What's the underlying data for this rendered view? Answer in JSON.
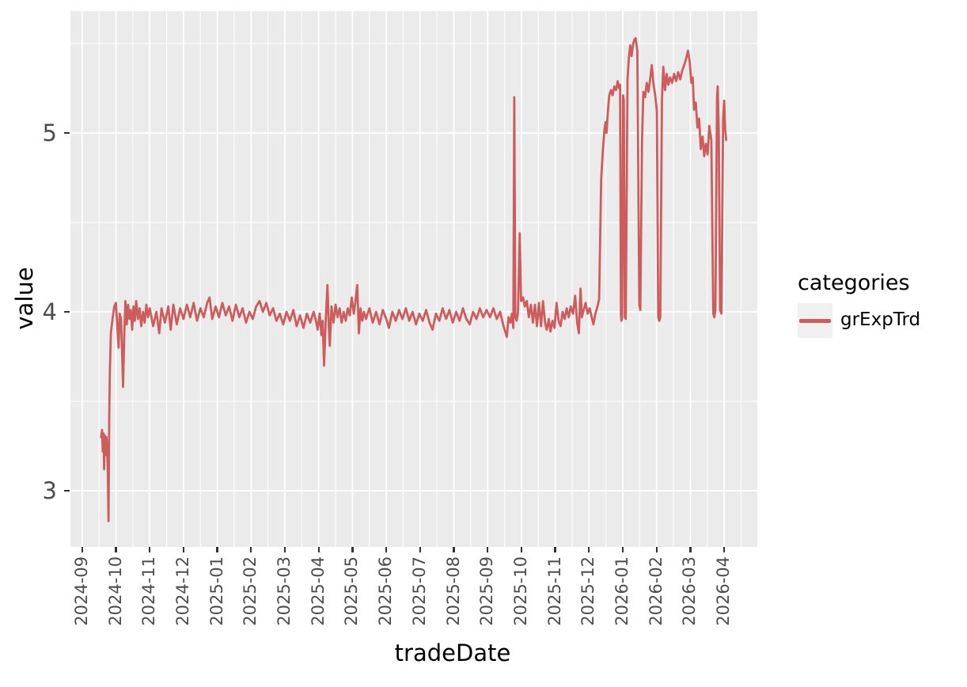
{
  "colors": {
    "figure_background": "#FFFFFF",
    "panel_background": "#EBEBEB",
    "grid": "#FFFFFF",
    "tick_label": "#4D4D4D",
    "tick_mark": "#333333",
    "axis_title": "#000000",
    "series_line": "#CD5C5C",
    "legend_key_background": "#F0F0F0"
  },
  "legend": {
    "title": "categories",
    "position": "right",
    "entries": [
      {
        "label": "grExpTrd",
        "color": "#CD5C5C"
      }
    ]
  },
  "chart_data": {
    "type": "line",
    "title": "",
    "xlabel": "tradeDate",
    "ylabel": "value",
    "x_unit": "months since 2024-09 (fractional month index)",
    "x_tick_labels": [
      "2024-09",
      "2024-10",
      "2024-11",
      "2024-12",
      "2025-01",
      "2025-02",
      "2025-03",
      "2025-04",
      "2025-05",
      "2025-06",
      "2025-07",
      "2025-08",
      "2025-09",
      "2025-10",
      "2025-11",
      "2025-12",
      "2026-01",
      "2026-02",
      "2026-03",
      "2026-04"
    ],
    "y_tick_values": [
      5,
      4,
      3
    ],
    "y_minor_values": [
      5.5,
      4.5,
      3.5
    ],
    "x_minor_offset": 0.5,
    "ylim_shown": [
      2.65,
      5.68
    ],
    "xlim_shown": [
      -0.35,
      19.98
    ],
    "grid": "white major and minor gridlines on gray panel",
    "legend_position": "right",
    "series": [
      {
        "name": "grExpTrd",
        "color": "#CD5C5C",
        "points": [
          [
            0.56,
            3.3
          ],
          [
            0.59,
            3.34
          ],
          [
            0.61,
            3.22
          ],
          [
            0.63,
            3.32
          ],
          [
            0.65,
            3.12
          ],
          [
            0.67,
            3.31
          ],
          [
            0.7,
            3.2
          ],
          [
            0.72,
            3.3
          ],
          [
            0.74,
            3.24
          ],
          [
            0.76,
            3.1
          ],
          [
            0.78,
            2.83
          ],
          [
            0.8,
            3.4
          ],
          [
            0.82,
            3.66
          ],
          [
            0.85,
            3.88
          ],
          [
            0.9,
            3.96
          ],
          [
            0.95,
            4.03
          ],
          [
            1.0,
            4.05
          ],
          [
            1.04,
            3.92
          ],
          [
            1.08,
            3.8
          ],
          [
            1.11,
            3.99
          ],
          [
            1.15,
            3.96
          ],
          [
            1.18,
            3.79
          ],
          [
            1.21,
            3.58
          ],
          [
            1.25,
            3.9
          ],
          [
            1.28,
            4.06
          ],
          [
            1.32,
            3.93
          ],
          [
            1.36,
            4.04
          ],
          [
            1.4,
            3.96
          ],
          [
            1.44,
            4.01
          ],
          [
            1.48,
            3.9
          ],
          [
            1.52,
            4.03
          ],
          [
            1.56,
            3.95
          ],
          [
            1.6,
            4.06
          ],
          [
            1.65,
            3.96
          ],
          [
            1.7,
            4.02
          ],
          [
            1.75,
            3.92
          ],
          [
            1.8,
            4.0
          ],
          [
            1.85,
            3.94
          ],
          [
            1.9,
            4.04
          ],
          [
            1.95,
            3.97
          ],
          [
            2.0,
            4.02
          ],
          [
            2.1,
            3.92
          ],
          [
            2.2,
            4.0
          ],
          [
            2.28,
            3.88
          ],
          [
            2.35,
            4.02
          ],
          [
            2.45,
            3.94
          ],
          [
            2.55,
            4.03
          ],
          [
            2.62,
            3.9
          ],
          [
            2.7,
            4.04
          ],
          [
            2.8,
            3.93
          ],
          [
            2.9,
            4.02
          ],
          [
            3.0,
            3.96
          ],
          [
            3.1,
            4.04
          ],
          [
            3.2,
            3.97
          ],
          [
            3.3,
            4.05
          ],
          [
            3.4,
            3.95
          ],
          [
            3.5,
            4.02
          ],
          [
            3.6,
            3.97
          ],
          [
            3.7,
            4.05
          ],
          [
            3.77,
            4.08
          ],
          [
            3.85,
            3.96
          ],
          [
            3.95,
            4.03
          ],
          [
            4.05,
            3.97
          ],
          [
            4.15,
            4.05
          ],
          [
            4.25,
            3.98
          ],
          [
            4.35,
            4.03
          ],
          [
            4.45,
            3.95
          ],
          [
            4.55,
            4.04
          ],
          [
            4.65,
            3.97
          ],
          [
            4.75,
            4.02
          ],
          [
            4.85,
            3.94
          ],
          [
            4.95,
            4.0
          ],
          [
            5.05,
            3.96
          ],
          [
            5.15,
            4.03
          ],
          [
            5.25,
            4.06
          ],
          [
            5.35,
            4.0
          ],
          [
            5.45,
            4.05
          ],
          [
            5.55,
            3.98
          ],
          [
            5.65,
            4.02
          ],
          [
            5.75,
            3.95
          ],
          [
            5.85,
            3.99
          ],
          [
            5.95,
            3.93
          ],
          [
            6.05,
            4.0
          ],
          [
            6.15,
            3.95
          ],
          [
            6.25,
            4.01
          ],
          [
            6.35,
            3.92
          ],
          [
            6.45,
            3.98
          ],
          [
            6.55,
            3.91
          ],
          [
            6.65,
            3.99
          ],
          [
            6.75,
            3.94
          ],
          [
            6.85,
            4.0
          ],
          [
            6.92,
            3.95
          ],
          [
            6.97,
            3.9
          ],
          [
            7.03,
            3.99
          ],
          [
            7.08,
            3.87
          ],
          [
            7.12,
            3.95
          ],
          [
            7.16,
            3.7
          ],
          [
            7.21,
            3.96
          ],
          [
            7.26,
            4.15
          ],
          [
            7.3,
            3.92
          ],
          [
            7.33,
            3.81
          ],
          [
            7.38,
            4.03
          ],
          [
            7.44,
            3.94
          ],
          [
            7.5,
            4.04
          ],
          [
            7.56,
            3.97
          ],
          [
            7.62,
            4.02
          ],
          [
            7.68,
            3.94
          ],
          [
            7.74,
            4.0
          ],
          [
            7.8,
            3.95
          ],
          [
            7.86,
            4.02
          ],
          [
            7.92,
            3.98
          ],
          [
            7.98,
            4.08
          ],
          [
            8.04,
            3.99
          ],
          [
            8.09,
            4.06
          ],
          [
            8.14,
            4.15
          ],
          [
            8.19,
            3.88
          ],
          [
            8.24,
            4.02
          ],
          [
            8.29,
            3.95
          ],
          [
            8.34,
            4.0
          ],
          [
            8.4,
            3.96
          ],
          [
            8.5,
            4.02
          ],
          [
            8.6,
            3.94
          ],
          [
            8.7,
            4.0
          ],
          [
            8.8,
            3.93
          ],
          [
            8.9,
            4.01
          ],
          [
            9.0,
            3.96
          ],
          [
            9.08,
            3.91
          ],
          [
            9.18,
            4.0
          ],
          [
            9.28,
            3.95
          ],
          [
            9.38,
            4.01
          ],
          [
            9.48,
            3.96
          ],
          [
            9.58,
            4.02
          ],
          [
            9.68,
            3.95
          ],
          [
            9.78,
            4.0
          ],
          [
            9.88,
            3.93
          ],
          [
            9.98,
            3.99
          ],
          [
            10.08,
            3.95
          ],
          [
            10.18,
            4.01
          ],
          [
            10.28,
            3.94
          ],
          [
            10.37,
            3.9
          ],
          [
            10.47,
            3.99
          ],
          [
            10.57,
            3.95
          ],
          [
            10.67,
            4.02
          ],
          [
            10.77,
            3.96
          ],
          [
            10.87,
            4.01
          ],
          [
            10.97,
            3.94
          ],
          [
            11.07,
            4.0
          ],
          [
            11.17,
            3.95
          ],
          [
            11.27,
            4.02
          ],
          [
            11.37,
            3.96
          ],
          [
            11.47,
            3.93
          ],
          [
            11.57,
            4.0
          ],
          [
            11.67,
            3.96
          ],
          [
            11.77,
            4.02
          ],
          [
            11.87,
            3.97
          ],
          [
            11.97,
            4.01
          ],
          [
            12.07,
            3.97
          ],
          [
            12.17,
            4.02
          ],
          [
            12.27,
            3.96
          ],
          [
            12.37,
            4.0
          ],
          [
            12.47,
            3.92
          ],
          [
            12.57,
            3.86
          ],
          [
            12.62,
            3.97
          ],
          [
            12.68,
            3.94
          ],
          [
            12.72,
            3.99
          ],
          [
            12.76,
            3.91
          ],
          [
            12.79,
            5.2
          ],
          [
            12.82,
            3.97
          ],
          [
            12.86,
            3.95
          ],
          [
            12.9,
            4.0
          ],
          [
            12.95,
            4.44
          ],
          [
            12.99,
            4.06
          ],
          [
            13.05,
            4.08
          ],
          [
            13.1,
            4.03
          ],
          [
            13.16,
            4.06
          ],
          [
            13.22,
            3.97
          ],
          [
            13.28,
            4.04
          ],
          [
            13.34,
            3.94
          ],
          [
            13.4,
            4.04
          ],
          [
            13.46,
            3.92
          ],
          [
            13.52,
            4.05
          ],
          [
            13.58,
            3.92
          ],
          [
            13.64,
            4.06
          ],
          [
            13.7,
            3.94
          ],
          [
            13.75,
            3.9
          ],
          [
            13.81,
            3.96
          ],
          [
            13.86,
            3.89
          ],
          [
            13.92,
            3.95
          ],
          [
            13.98,
            3.91
          ],
          [
            14.04,
            4.05
          ],
          [
            14.1,
            3.95
          ],
          [
            14.16,
            3.92
          ],
          [
            14.22,
            4.0
          ],
          [
            14.28,
            3.96
          ],
          [
            14.34,
            4.02
          ],
          [
            14.4,
            3.97
          ],
          [
            14.46,
            4.03
          ],
          [
            14.53,
            3.99
          ],
          [
            14.59,
            4.09
          ],
          [
            14.65,
            3.94
          ],
          [
            14.7,
            3.88
          ],
          [
            14.75,
            4.13
          ],
          [
            14.79,
            3.97
          ],
          [
            14.84,
            4.01
          ],
          [
            14.9,
            4.05
          ],
          [
            14.96,
            3.99
          ],
          [
            15.02,
            4.02
          ],
          [
            15.08,
            3.97
          ],
          [
            15.13,
            3.93
          ],
          [
            15.19,
            3.99
          ],
          [
            15.25,
            4.03
          ],
          [
            15.3,
            4.07
          ],
          [
            15.33,
            4.4
          ],
          [
            15.36,
            4.74
          ],
          [
            15.41,
            4.9
          ],
          [
            15.46,
            5.02
          ],
          [
            15.49,
            5.06
          ],
          [
            15.52,
            5.0
          ],
          [
            15.56,
            5.12
          ],
          [
            15.6,
            5.21
          ],
          [
            15.65,
            5.24
          ],
          [
            15.7,
            5.21
          ],
          [
            15.75,
            5.26
          ],
          [
            15.8,
            5.24
          ],
          [
            15.85,
            5.29
          ],
          [
            15.89,
            5.25
          ],
          [
            15.92,
            5.27
          ],
          [
            15.945,
            3.98
          ],
          [
            15.96,
            3.95
          ],
          [
            15.98,
            3.97
          ],
          [
            16.01,
            5.21
          ],
          [
            16.03,
            5.18
          ],
          [
            16.06,
            3.97
          ],
          [
            16.09,
            3.96
          ],
          [
            16.14,
            5.3
          ],
          [
            16.18,
            5.42
          ],
          [
            16.22,
            5.49
          ],
          [
            16.26,
            5.43
          ],
          [
            16.3,
            5.49
          ],
          [
            16.34,
            5.52
          ],
          [
            16.38,
            5.53
          ],
          [
            16.43,
            5.46
          ],
          [
            16.49,
            4.04
          ],
          [
            16.52,
            4.01
          ],
          [
            16.57,
            4.95
          ],
          [
            16.61,
            5.23
          ],
          [
            16.66,
            5.2
          ],
          [
            16.71,
            5.28
          ],
          [
            16.76,
            5.23
          ],
          [
            16.81,
            5.3
          ],
          [
            16.86,
            5.38
          ],
          [
            16.91,
            5.27
          ],
          [
            16.96,
            5.21
          ],
          [
            17.01,
            5.12
          ],
          [
            17.05,
            3.97
          ],
          [
            17.08,
            3.95
          ],
          [
            17.11,
            3.97
          ],
          [
            17.16,
            5.18
          ],
          [
            17.2,
            5.37
          ],
          [
            17.25,
            5.24
          ],
          [
            17.3,
            5.33
          ],
          [
            17.35,
            5.27
          ],
          [
            17.4,
            5.31
          ],
          [
            17.46,
            5.28
          ],
          [
            17.52,
            5.33
          ],
          [
            17.58,
            5.29
          ],
          [
            17.64,
            5.34
          ],
          [
            17.7,
            5.3
          ],
          [
            17.76,
            5.35
          ],
          [
            17.82,
            5.38
          ],
          [
            17.88,
            5.42
          ],
          [
            17.93,
            5.46
          ],
          [
            17.98,
            5.4
          ],
          [
            18.03,
            5.28
          ],
          [
            18.07,
            5.31
          ],
          [
            18.11,
            5.13
          ],
          [
            18.16,
            5.17
          ],
          [
            18.21,
            5.03
          ],
          [
            18.26,
            5.08
          ],
          [
            18.31,
            4.91
          ],
          [
            18.36,
            4.98
          ],
          [
            18.41,
            4.87
          ],
          [
            18.46,
            4.94
          ],
          [
            18.51,
            4.88
          ],
          [
            18.56,
            5.04
          ],
          [
            18.62,
            4.96
          ],
          [
            18.68,
            3.99
          ],
          [
            18.71,
            3.97
          ],
          [
            18.74,
            4.01
          ],
          [
            18.79,
            5.2
          ],
          [
            18.81,
            5.26
          ],
          [
            18.84,
            5.0
          ],
          [
            18.88,
            4.01
          ],
          [
            18.92,
            3.99
          ],
          [
            18.97,
            5.08
          ],
          [
            19.0,
            5.18
          ],
          [
            19.03,
            5.02
          ],
          [
            19.06,
            4.96
          ]
        ]
      }
    ]
  }
}
